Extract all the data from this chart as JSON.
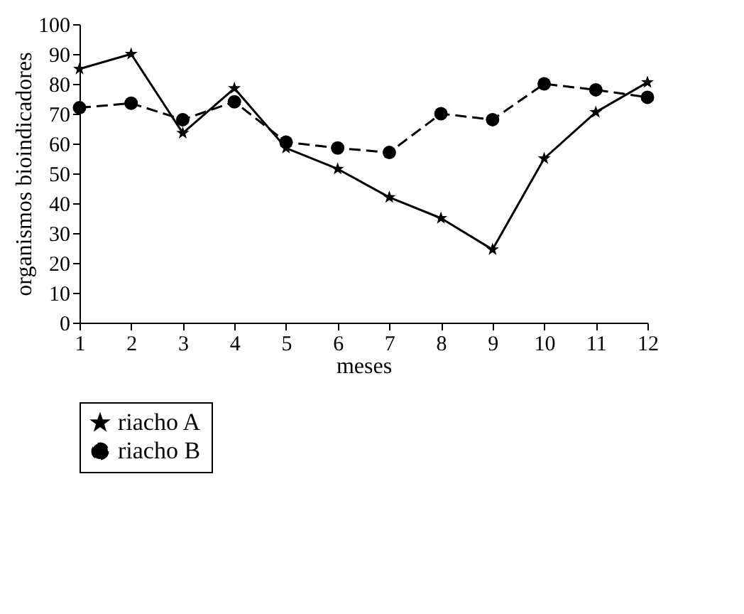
{
  "chart_data": {
    "type": "line",
    "xlabel": "meses",
    "ylabel": "organismos bioindicadores",
    "x": [
      1,
      2,
      3,
      4,
      5,
      6,
      7,
      8,
      9,
      10,
      11,
      12
    ],
    "series": [
      {
        "name": "riacho A",
        "color": "#000000",
        "marker": "star",
        "line_style": "solid",
        "values": [
          85,
          90,
          63.5,
          78.5,
          58.5,
          51.5,
          42,
          35,
          24.5,
          55,
          70.5,
          80.5
        ]
      },
      {
        "name": "riacho B",
        "color": "#000000",
        "marker": "circle",
        "line_style": "dashed",
        "values": [
          72,
          73.5,
          68,
          74,
          60.5,
          58.5,
          57,
          70,
          68,
          80,
          78,
          75.5
        ]
      }
    ],
    "xlim": [
      1,
      12
    ],
    "xticks": [
      1,
      2,
      3,
      4,
      5,
      6,
      7,
      8,
      9,
      10,
      11,
      12
    ],
    "ylim": [
      0,
      100
    ],
    "yticks": [
      0,
      10,
      20,
      30,
      40,
      50,
      60,
      70,
      80,
      90,
      100
    ],
    "grid": false,
    "legend": "bottom"
  }
}
